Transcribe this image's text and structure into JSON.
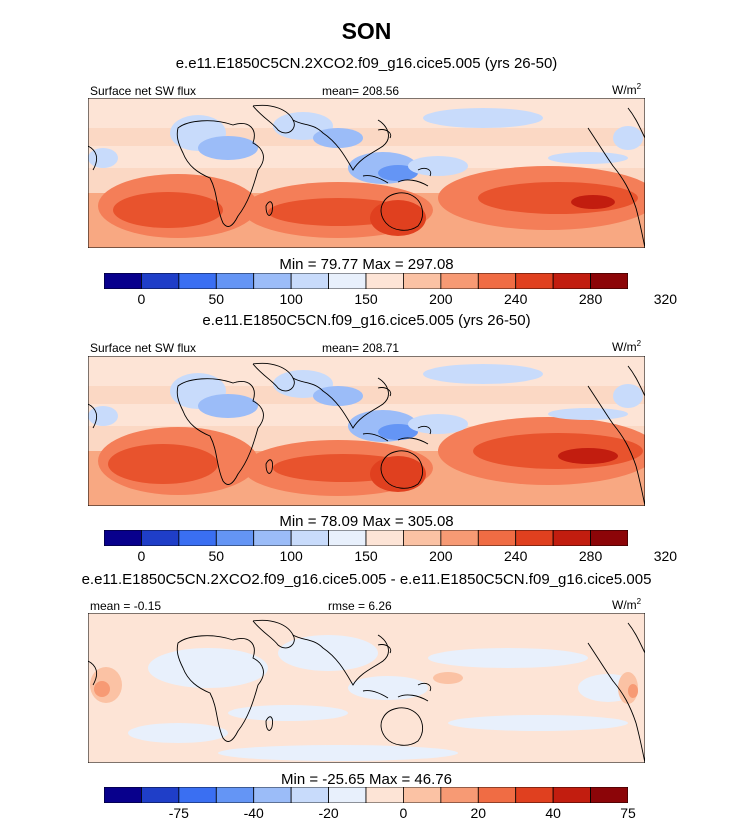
{
  "season_title": "SON",
  "panels": [
    {
      "case_title": "e.e11.E1850C5CN.2XCO2.f09_g16.cice5.005 (yrs 26-50)",
      "left_label": "Surface net SW flux",
      "center_label": "mean= 208.56",
      "units_base": "W/m",
      "units_exp": "2",
      "min_max": "Min =  79.77 Max = 297.08",
      "tick_labels": [
        "0",
        "50",
        "100",
        "150",
        "200",
        "240",
        "280",
        "320"
      ]
    },
    {
      "case_title": "e.e11.E1850C5CN.f09_g16.cice5.005 (yrs 26-50)",
      "left_label": "Surface net SW flux",
      "center_label": "mean= 208.71",
      "units_base": "W/m",
      "units_exp": "2",
      "min_max": "Min =  78.09 Max = 305.08",
      "tick_labels": [
        "0",
        "50",
        "100",
        "150",
        "200",
        "240",
        "280",
        "320"
      ]
    },
    {
      "case_title": "e.e11.E1850C5CN.2XCO2.f09_g16.cice5.005 - e.e11.E1850C5CN.f09_g16.cice5.005",
      "left_label": "mean =  -0.15",
      "center_label": "rmse =   6.26",
      "units_base": "W/m",
      "units_exp": "2",
      "min_max": "Min = -25.65 Max =  46.76",
      "tick_labels": [
        "-75",
        "-40",
        "-20",
        "0",
        "20",
        "40",
        "75"
      ]
    }
  ],
  "colorbar_colors": [
    "#08008c",
    "#1f3ec8",
    "#3a6ff2",
    "#6495f5",
    "#9bbcf8",
    "#c8dbfb",
    "#e8f0fc",
    "#fde4d6",
    "#fbc2a4",
    "#f79a74",
    "#f06c44",
    "#e0401f",
    "#c21d0f",
    "#8c0508"
  ],
  "chart_data": [
    {
      "type": "heatmap",
      "title": "Surface net SW flux",
      "subtitle": "e.e11.E1850C5CN.2XCO2.f09_g16.cice5.005 (yrs 26-50)",
      "units": "W/m2",
      "mean": 208.56,
      "min": 79.77,
      "max": 297.08,
      "contour_levels": [
        0,
        25,
        50,
        75,
        100,
        125,
        150,
        175,
        200,
        220,
        240,
        260,
        280,
        300,
        320
      ],
      "colorbar_tick_labels": [
        0,
        50,
        100,
        150,
        200,
        240,
        280,
        320
      ]
    },
    {
      "type": "heatmap",
      "title": "Surface net SW flux",
      "subtitle": "e.e11.E1850C5CN.f09_g16.cice5.005 (yrs 26-50)",
      "units": "W/m2",
      "mean": 208.71,
      "min": 78.09,
      "max": 305.08,
      "contour_levels": [
        0,
        25,
        50,
        75,
        100,
        125,
        150,
        175,
        200,
        220,
        240,
        260,
        280,
        300,
        320
      ],
      "colorbar_tick_labels": [
        0,
        50,
        100,
        150,
        200,
        240,
        280,
        320
      ]
    },
    {
      "type": "heatmap",
      "title": "e.e11.E1850C5CN.2XCO2.f09_g16.cice5.005 - e.e11.E1850C5CN.f09_g16.cice5.005",
      "units": "W/m2",
      "mean": -0.15,
      "rmse": 6.26,
      "min": -25.65,
      "max": 46.76,
      "colorbar_tick_labels": [
        -75,
        -40,
        -20,
        0,
        20,
        40,
        75
      ]
    }
  ]
}
